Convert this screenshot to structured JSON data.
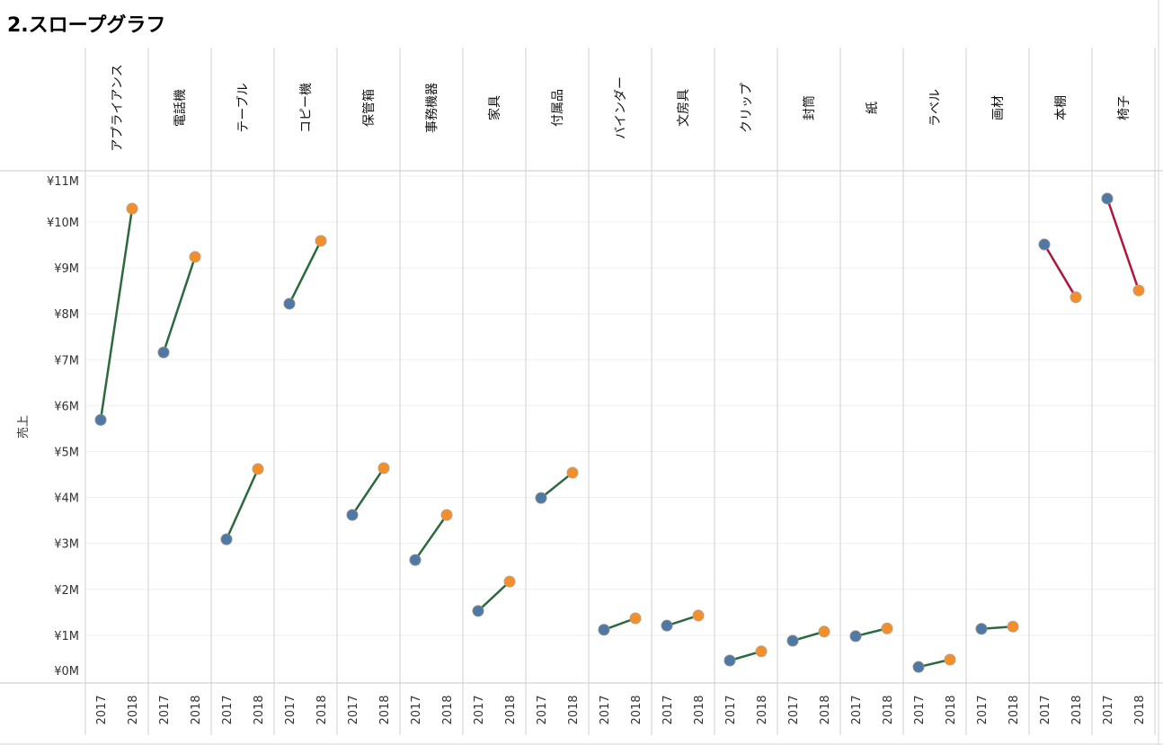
{
  "title": "2.スロープグラフ",
  "chart_data": {
    "type": "line",
    "title": "2.スロープグラフ",
    "ylabel": "売上",
    "ylim": [
      0,
      11000000
    ],
    "yticks": [
      "¥0M",
      "¥1M",
      "¥2M",
      "¥3M",
      "¥4M",
      "¥5M",
      "¥6M",
      "¥7M",
      "¥8M",
      "¥9M",
      "¥10M",
      "¥11M"
    ],
    "x": [
      "2017",
      "2018"
    ],
    "colors": {
      "up": "#2a6a3e",
      "down": "#b0163c",
      "y2017": "#4e79a7",
      "y2018": "#f28e2b"
    },
    "categories": [
      "アプライアンス",
      "電話機",
      "テーブル",
      "コピー機",
      "保管箱",
      "事務機器",
      "家具",
      "付属品",
      "バインダー",
      "文房具",
      "クリップ",
      "封筒",
      "紙",
      "ラベル",
      "画材",
      "本棚",
      "椅子"
    ],
    "series": [
      {
        "name": "2017",
        "values": [
          5.69,
          7.16,
          3.09,
          8.22,
          3.62,
          2.64,
          1.53,
          3.99,
          1.12,
          1.21,
          0.45,
          0.88,
          0.98,
          0.31,
          1.14,
          9.51,
          10.51
        ]
      },
      {
        "name": "2018",
        "values": [
          10.29,
          9.24,
          4.62,
          9.59,
          4.64,
          3.62,
          2.17,
          4.54,
          1.37,
          1.43,
          0.65,
          1.08,
          1.15,
          0.47,
          1.19,
          8.36,
          8.51
        ]
      }
    ],
    "unit": "¥M",
    "grid": true
  }
}
